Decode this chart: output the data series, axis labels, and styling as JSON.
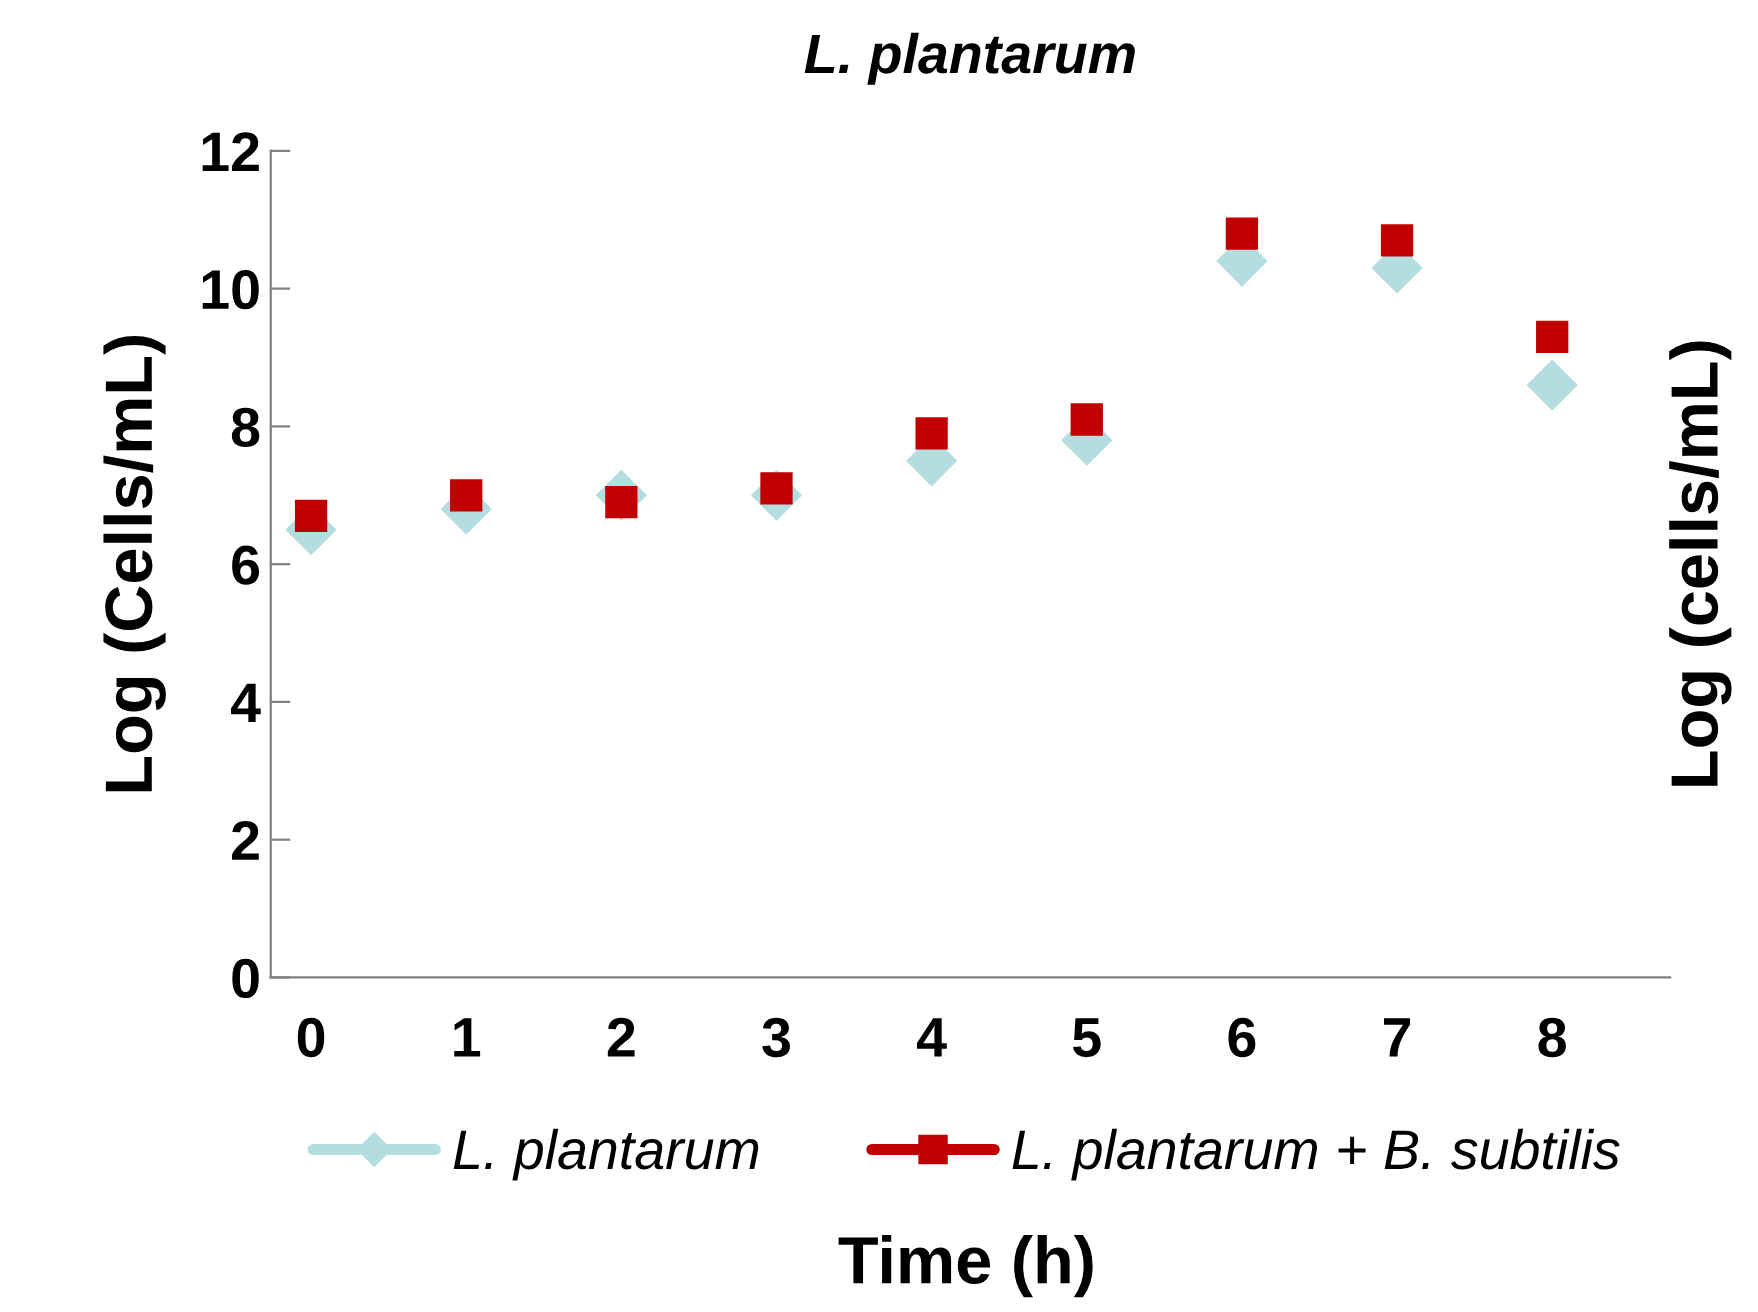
{
  "chart_data": {
    "type": "scatter",
    "title": "L. plantarum",
    "xlabel": "Time (h)",
    "ylabel": "Log (Cells/mL)",
    "y2label": "Log (cells/mL)",
    "categories": [
      "0",
      "1",
      "2",
      "3",
      "4",
      "5",
      "6",
      "7",
      "8"
    ],
    "series": [
      {
        "name": "L. plantarum",
        "color": "#b4dde0",
        "marker": "diamond",
        "values": [
          6.5,
          6.8,
          7.0,
          7.0,
          7.5,
          7.8,
          10.4,
          10.3,
          8.6
        ]
      },
      {
        "name": "L. plantarum + B. subtilis",
        "color": "#c00000",
        "marker": "square",
        "values": [
          6.7,
          7.0,
          6.9,
          7.1,
          7.9,
          8.1,
          10.8,
          10.7,
          9.3
        ]
      }
    ],
    "ylim": [
      0,
      12
    ],
    "yticks": [
      0,
      2,
      4,
      6,
      8,
      10,
      12
    ],
    "grid": false,
    "legend": "bottom"
  }
}
